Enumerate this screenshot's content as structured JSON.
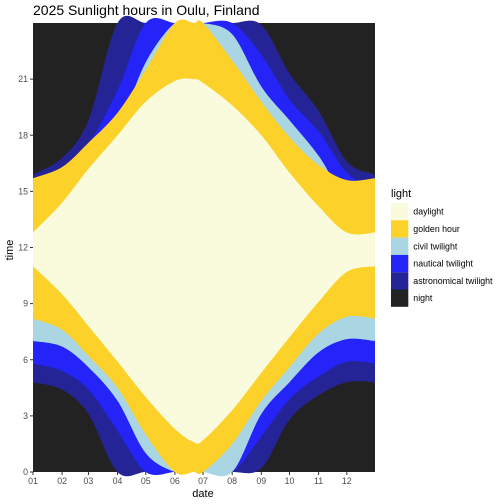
{
  "chart_data": {
    "type": "area",
    "title": "2025 Sunlight hours in Oulu, Finland",
    "xlabel": "date",
    "ylabel": "time",
    "x_tick_labels": [
      "01",
      "02",
      "03",
      "04",
      "05",
      "06",
      "07",
      "08",
      "09",
      "10",
      "11",
      "12"
    ],
    "y_ticks": [
      0,
      3,
      6,
      9,
      12,
      15,
      18,
      21
    ],
    "y_tick_labels": [
      "0",
      "3",
      "6",
      "9",
      "12",
      "15",
      "18",
      "21"
    ],
    "xlim": [
      "2025-01-01",
      "2025-12-31"
    ],
    "ylim": [
      0,
      24
    ],
    "x_month_days": [
      "2025-01-01",
      "2025-02-01",
      "2025-03-01",
      "2025-04-01",
      "2025-05-01",
      "2025-06-01",
      "2025-07-01",
      "2025-08-01",
      "2025-09-01",
      "2025-10-01",
      "2025-11-01",
      "2025-12-01",
      "2025-12-31"
    ],
    "legend": {
      "title": "light",
      "position": "right",
      "items": [
        {
          "label": "daylight",
          "color": "#fafadd"
        },
        {
          "label": "golden hour",
          "color": "#fcd22a"
        },
        {
          "label": "civil twilight",
          "color": "#aad6e3"
        },
        {
          "label": "nautical twilight",
          "color": "#2424f8"
        },
        {
          "label": "astronomical twilight",
          "color": "#242496"
        },
        {
          "label": "night",
          "color": "#222222"
        }
      ]
    },
    "background_color": "#ebebeb",
    "grid": true,
    "series": [
      {
        "name": "daylight",
        "color": "#fafadd",
        "x": [
          "2025-01-01",
          "2025-02-01",
          "2025-03-01",
          "2025-04-01",
          "2025-05-01",
          "2025-06-01",
          "2025-06-21",
          "2025-07-01",
          "2025-08-01",
          "2025-09-01",
          "2025-10-01",
          "2025-11-01",
          "2025-12-01",
          "2025-12-31"
        ],
        "start": [
          11.0,
          9.5,
          7.8,
          5.9,
          4.0,
          2.3,
          1.6,
          1.7,
          3.3,
          5.3,
          7.2,
          9.1,
          10.7,
          11.0
        ],
        "end": [
          12.8,
          14.4,
          16.2,
          18.0,
          19.8,
          20.9,
          21.0,
          20.8,
          19.6,
          18.0,
          16.0,
          14.2,
          12.8,
          12.8
        ]
      },
      {
        "name": "golden hour",
        "color": "#fcd22a",
        "x": [
          "2025-01-01",
          "2025-02-01",
          "2025-03-01",
          "2025-04-01",
          "2025-05-01",
          "2025-06-01",
          "2025-06-21",
          "2025-07-01",
          "2025-08-01",
          "2025-09-01",
          "2025-10-01",
          "2025-11-01",
          "2025-12-01",
          "2025-12-31"
        ],
        "start": [
          8.2,
          7.6,
          6.2,
          4.5,
          2.0,
          0.0,
          0.0,
          0.0,
          1.5,
          3.8,
          5.6,
          7.4,
          8.3,
          8.2
        ],
        "end": [
          15.7,
          16.3,
          17.6,
          19.2,
          21.5,
          24.0,
          24.0,
          24.0,
          22.0,
          19.8,
          17.9,
          16.4,
          15.6,
          15.7
        ]
      },
      {
        "name": "civil twilight",
        "color": "#aad6e3",
        "x": [
          "2025-01-01",
          "2025-02-01",
          "2025-03-01",
          "2025-04-01",
          "2025-05-01",
          "2025-06-01",
          "2025-06-21",
          "2025-07-01",
          "2025-08-01",
          "2025-09-01",
          "2025-10-01",
          "2025-11-01",
          "2025-12-01",
          "2025-12-31"
        ],
        "start": [
          7.0,
          6.7,
          5.6,
          3.8,
          1.0,
          0.0,
          0.0,
          0.0,
          0.0,
          3.1,
          4.8,
          6.4,
          7.1,
          7.0
        ],
        "end": [
          14.4,
          14.8,
          16.3,
          18.3,
          21.9,
          24.0,
          24.0,
          24.0,
          23.4,
          20.6,
          18.8,
          16.9,
          14.6,
          14.4
        ]
      },
      {
        "name": "nautical twilight",
        "color": "#2424f8",
        "x": [
          "2025-01-01",
          "2025-02-01",
          "2025-03-01",
          "2025-04-01",
          "2025-05-01",
          "2025-06-01",
          "2025-06-21",
          "2025-07-01",
          "2025-08-01",
          "2025-09-01",
          "2025-10-01",
          "2025-11-01",
          "2025-12-01",
          "2025-12-31"
        ],
        "start": [
          5.8,
          5.4,
          4.4,
          2.2,
          0.0,
          0.0,
          0.0,
          0.0,
          0.0,
          1.9,
          3.9,
          5.1,
          5.9,
          5.8
        ],
        "end": [
          15.1,
          15.8,
          17.5,
          20.4,
          24.0,
          24.0,
          24.0,
          24.0,
          24.0,
          22.3,
          19.9,
          18.2,
          16.0,
          15.1
        ]
      },
      {
        "name": "astronomical twilight",
        "color": "#242496",
        "x": [
          "2025-01-01",
          "2025-02-01",
          "2025-03-01",
          "2025-04-01",
          "2025-05-01",
          "2025-06-01",
          "2025-06-21",
          "2025-07-01",
          "2025-08-01",
          "2025-09-01",
          "2025-10-01",
          "2025-11-01",
          "2025-12-01",
          "2025-12-31"
        ],
        "start": [
          4.8,
          4.4,
          3.1,
          0.0,
          0.0,
          0.0,
          0.0,
          0.0,
          0.0,
          0.2,
          2.8,
          4.1,
          4.8,
          4.8
        ],
        "end": [
          15.9,
          16.8,
          18.8,
          24.0,
          24.0,
          24.0,
          24.0,
          24.0,
          24.0,
          23.9,
          21.3,
          19.3,
          16.6,
          15.9
        ]
      }
    ]
  }
}
